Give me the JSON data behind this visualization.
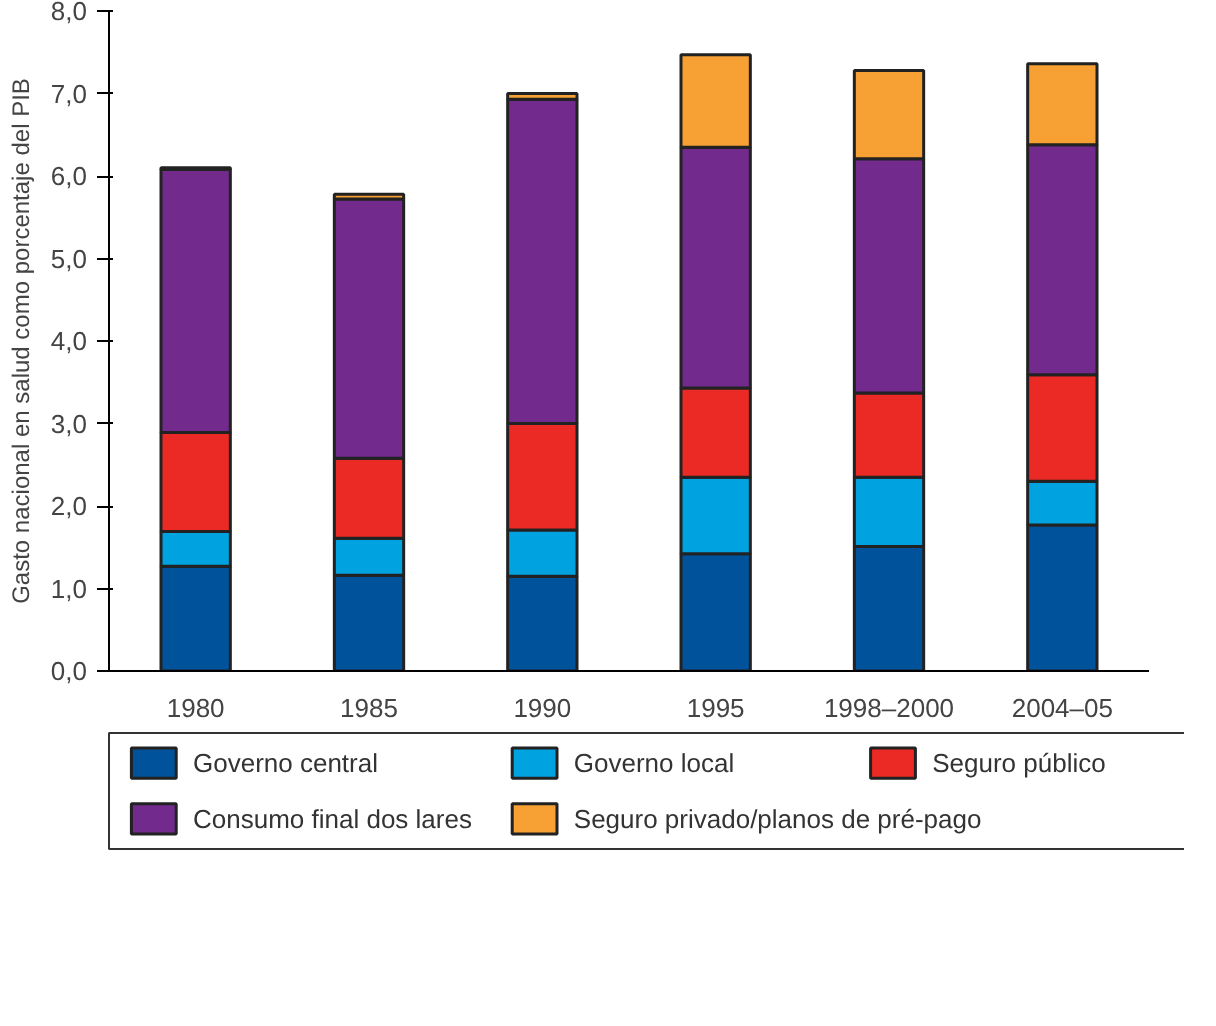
{
  "chart_data": {
    "type": "bar",
    "stacked": true,
    "ylabel": "Gasto nacional en salud como porcentaje del PIB",
    "categories": [
      "1980",
      "1985",
      "1990",
      "1995",
      "1998–2000",
      "2004–05"
    ],
    "series": [
      {
        "name": "Governo central",
        "color": "#00539b",
        "values": [
          1.27,
          1.16,
          1.15,
          1.42,
          1.51,
          1.77
        ]
      },
      {
        "name": "Governo local",
        "color": "#00a3e0",
        "values": [
          0.42,
          0.45,
          0.56,
          0.93,
          0.84,
          0.53
        ]
      },
      {
        "name": "Seguro público",
        "color": "#ec2a25",
        "values": [
          1.2,
          0.97,
          1.29,
          1.08,
          1.02,
          1.29
        ]
      },
      {
        "name": "Consumo final dos lares",
        "color": "#722a8c",
        "values": [
          3.19,
          3.14,
          3.93,
          2.92,
          2.84,
          2.79
        ]
      },
      {
        "name": "Seguro privado/planos de pré-pago",
        "color": "#f7a033",
        "values": [
          0.02,
          0.06,
          0.07,
          1.12,
          1.07,
          0.98
        ]
      }
    ],
    "ylim": [
      0,
      8
    ],
    "yticks": [
      {
        "value": 0,
        "label": "0,0"
      },
      {
        "value": 1,
        "label": "1,0"
      },
      {
        "value": 2,
        "label": "2,0"
      },
      {
        "value": 3,
        "label": "3,0"
      },
      {
        "value": 4,
        "label": "4,0"
      },
      {
        "value": 5,
        "label": "5,0"
      },
      {
        "value": 6,
        "label": "6,0"
      },
      {
        "value": 7,
        "label": "7,0"
      },
      {
        "value": 8,
        "label": "8,0"
      }
    ],
    "grid": false,
    "legend": "bottom"
  }
}
